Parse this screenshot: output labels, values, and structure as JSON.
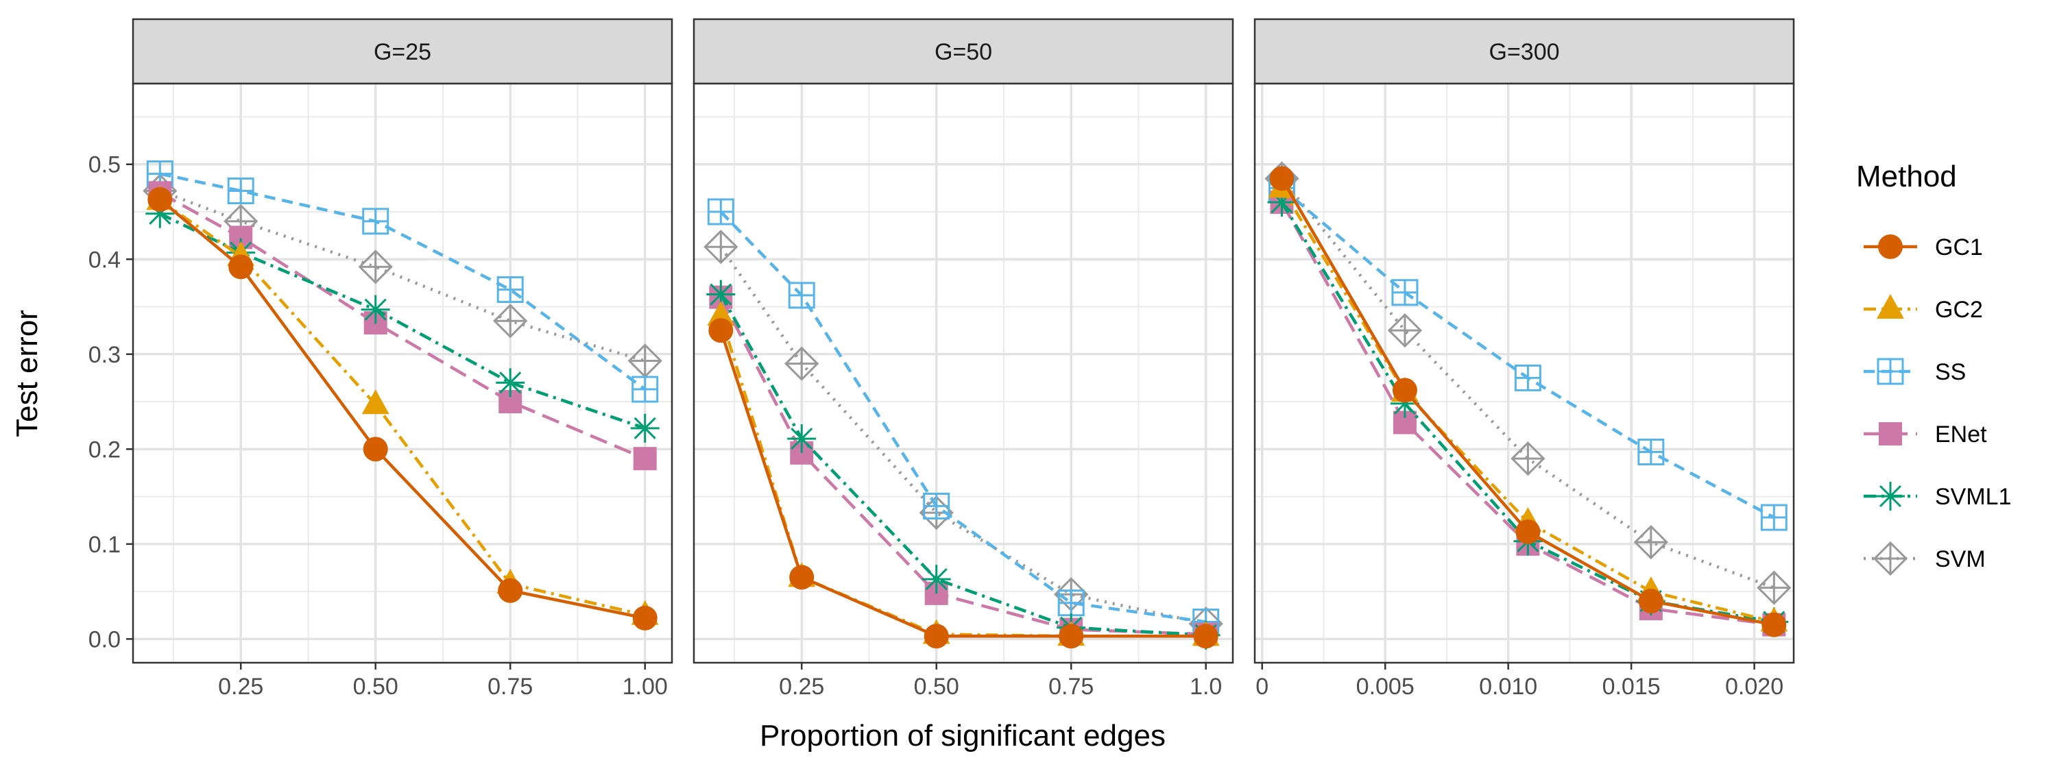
{
  "chart_data": {
    "type": "line",
    "xlabel": "Proportion of significant edges",
    "ylabel": "Test error",
    "ylim": [
      -0.025,
      0.585
    ],
    "yticks": [
      0.0,
      0.1,
      0.2,
      0.3,
      0.4,
      0.5
    ],
    "ytick_labels": [
      "0.0",
      "0.1",
      "0.2",
      "0.3",
      "0.4",
      "0.5"
    ],
    "grid": true,
    "legend": {
      "title": "Method",
      "placement": "right",
      "entries": [
        "GC1",
        "GC2",
        "SS",
        "ENet",
        "SVML1",
        "SVM"
      ]
    },
    "styles": {
      "GC1": {
        "color": "#D55E00",
        "dash": "none",
        "marker": "circle-filled"
      },
      "GC2": {
        "color": "#E69F00",
        "dash": "dashdot",
        "marker": "triangle-filled"
      },
      "SS": {
        "color": "#56B4E9",
        "dash": "dashed",
        "marker": "square-plus"
      },
      "ENet": {
        "color": "#CC79A7",
        "dash": "longdash",
        "marker": "square-filled"
      },
      "SVML1": {
        "color": "#009E73",
        "dash": "dashdot",
        "marker": "asterisk"
      },
      "SVM": {
        "color": "#999999",
        "dash": "dotted",
        "marker": "diamond-plus"
      }
    },
    "panels": [
      {
        "title": "G=25",
        "xlim": [
          0.05,
          1.05
        ],
        "xticks": [
          0.25,
          0.5,
          0.75,
          1.0
        ],
        "xtick_labels": [
          "0.25",
          "0.50",
          "0.75",
          "1.00"
        ],
        "x": [
          0.1,
          0.25,
          0.5,
          0.75,
          1.0
        ],
        "series": [
          {
            "name": "SVM",
            "values": [
              0.472,
              0.44,
              0.392,
              0.335,
              0.293
            ]
          },
          {
            "name": "SS",
            "values": [
              0.49,
              0.472,
              0.44,
              0.368,
              0.263
            ]
          },
          {
            "name": "ENet",
            "values": [
              0.47,
              0.423,
              0.333,
              0.25,
              0.19
            ]
          },
          {
            "name": "SVML1",
            "values": [
              0.448,
              0.407,
              0.347,
              0.27,
              0.222
            ]
          },
          {
            "name": "GC2",
            "values": [
              0.462,
              0.403,
              0.247,
              0.058,
              0.025
            ]
          },
          {
            "name": "GC1",
            "values": [
              0.463,
              0.392,
              0.2,
              0.051,
              0.022
            ]
          }
        ]
      },
      {
        "title": "G=50",
        "xlim": [
          0.05,
          1.05
        ],
        "xticks": [
          0.25,
          0.5,
          0.75,
          1.0
        ],
        "xtick_labels": [
          "0.25",
          "0.50",
          "0.75",
          "1.0"
        ],
        "x": [
          0.1,
          0.25,
          0.5,
          0.75,
          1.0
        ],
        "series": [
          {
            "name": "SVM",
            "values": [
              0.413,
              0.29,
              0.133,
              0.047,
              0.016
            ]
          },
          {
            "name": "SS",
            "values": [
              0.45,
              0.362,
              0.14,
              0.038,
              0.018
            ]
          },
          {
            "name": "ENet",
            "values": [
              0.36,
              0.196,
              0.048,
              0.01,
              0.005
            ]
          },
          {
            "name": "SVML1",
            "values": [
              0.363,
              0.211,
              0.063,
              0.012,
              0.004
            ]
          },
          {
            "name": "GC2",
            "values": [
              0.34,
              0.065,
              0.005,
              0.003,
              0.003
            ]
          },
          {
            "name": "GC1",
            "values": [
              0.325,
              0.065,
              0.003,
              0.003,
              0.003
            ]
          }
        ]
      },
      {
        "title": "G=300",
        "xlim": [
          -0.0003,
          0.0216
        ],
        "xticks": [
          0.0,
          0.005,
          0.01,
          0.015,
          0.02
        ],
        "xtick_labels": [
          "0",
          "0.005",
          "0.010",
          "0.015",
          "0.020"
        ],
        "x": [
          0.0008,
          0.0058,
          0.0108,
          0.0158,
          0.0208
        ],
        "series": [
          {
            "name": "SVM",
            "values": [
              0.485,
              0.325,
              0.19,
              0.102,
              0.054
            ]
          },
          {
            "name": "SS",
            "values": [
              0.475,
              0.365,
              0.275,
              0.197,
              0.128
            ]
          },
          {
            "name": "ENet",
            "values": [
              0.46,
              0.228,
              0.1,
              0.032,
              0.015
            ]
          },
          {
            "name": "SVML1",
            "values": [
              0.46,
              0.248,
              0.103,
              0.04,
              0.018
            ]
          },
          {
            "name": "GC2",
            "values": [
              0.475,
              0.26,
              0.123,
              0.05,
              0.018
            ]
          },
          {
            "name": "GC1",
            "values": [
              0.485,
              0.262,
              0.113,
              0.04,
              0.015
            ]
          }
        ]
      }
    ]
  }
}
